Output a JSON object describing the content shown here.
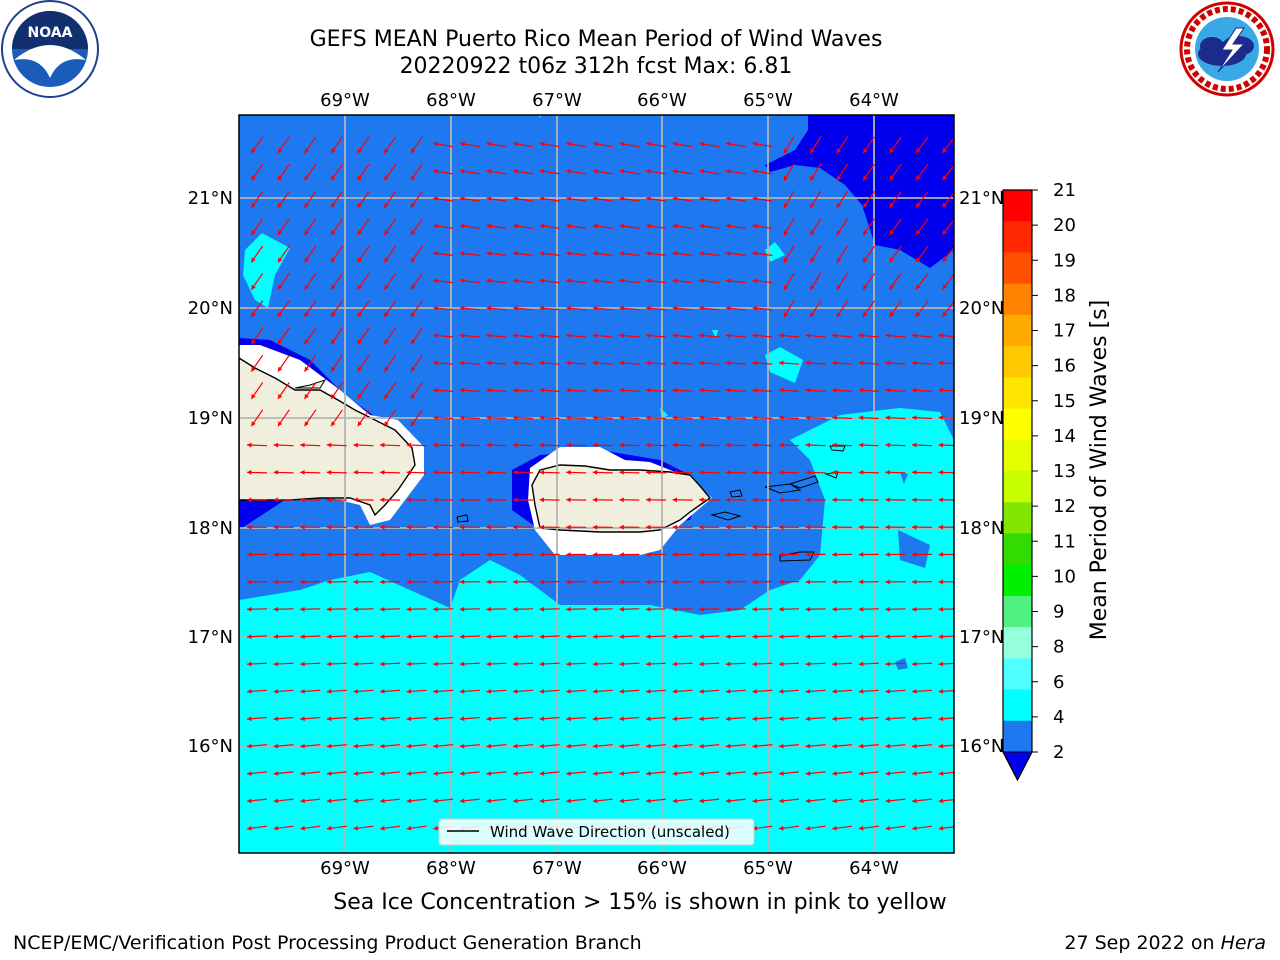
{
  "header": {
    "title_line1": "GEFS MEAN Puerto Rico Mean Period of Wind Waves",
    "title_line2": "20220922 t06z 312h fcst   Max: 6.81"
  },
  "map": {
    "lon_ticks_top": [
      "69°W",
      "68°W",
      "67°W",
      "66°W",
      "65°W",
      "64°W"
    ],
    "lon_ticks_bottom": [
      "69°W",
      "68°W",
      "67°W",
      "66°W",
      "65°W",
      "64°W"
    ],
    "lat_ticks_left": [
      "21°N",
      "20°N",
      "19°N",
      "18°N",
      "17°N",
      "16°N"
    ],
    "lat_ticks_right": [
      "21°N",
      "20°N",
      "19°N",
      "18°N",
      "17°N",
      "16°N"
    ],
    "legend_label": "Wind Wave Direction (unscaled)",
    "colors": {
      "ocean_dark": "#0000ee",
      "ocean_mid": "#1e78f0",
      "ocean_cyan": "#00ffff",
      "land": "#f0eedc",
      "arrow": "#ff0000",
      "grid": "#b4b4b4"
    }
  },
  "colorbar": {
    "label": "Mean Period of Wind Waves [s]",
    "ticks": [
      "21",
      "20",
      "19",
      "18",
      "17",
      "16",
      "15",
      "14",
      "13",
      "12",
      "11",
      "10",
      "9",
      "8",
      "6",
      "4",
      "2"
    ],
    "colors": [
      "#ff0000",
      "#ff2800",
      "#ff5000",
      "#ff8200",
      "#ffaa00",
      "#ffc800",
      "#ffe600",
      "#ffff00",
      "#e6ff00",
      "#c8ff00",
      "#82e600",
      "#32dc00",
      "#00f000",
      "#50f082",
      "#96ffdc",
      "#50ffff",
      "#00ffff",
      "#1e78f0"
    ],
    "under_color": "#0000ee"
  },
  "caption": "Sea Ice Concentration > 15% is shown in pink to yellow",
  "footer": {
    "left": "NCEP/EMC/Verification Post Processing Product Generation Branch",
    "right_prefix": "27 Sep 2022 on ",
    "right_host": "Hera"
  },
  "logos": {
    "left": "noaa-logo-icon",
    "right": "national-weather-service-logo-icon",
    "left_text": "NOAA"
  }
}
